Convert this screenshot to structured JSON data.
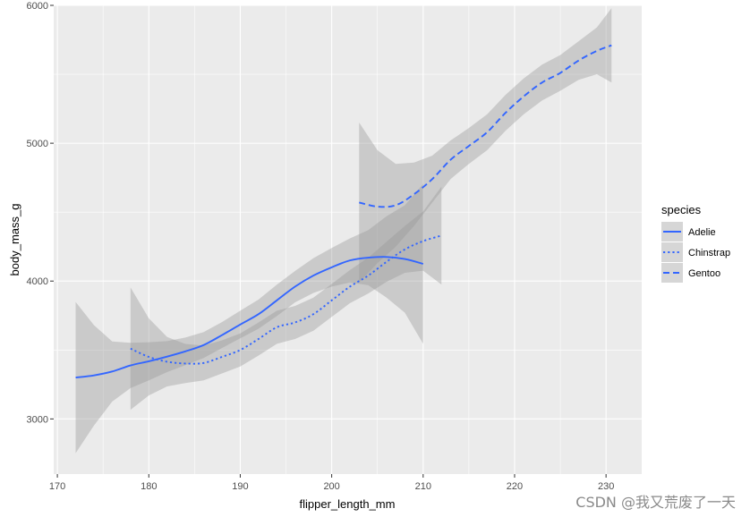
{
  "chart_data": {
    "type": "line",
    "title": "",
    "xlabel": "flipper_length_mm",
    "ylabel": "body_mass_g",
    "xlim": [
      169.6,
      233.9
    ],
    "ylim": [
      2600,
      6000
    ],
    "x_ticks": [
      170,
      180,
      190,
      200,
      210,
      220,
      230
    ],
    "y_ticks": [
      3000,
      4000,
      5000,
      6000
    ],
    "grid": true,
    "legend": {
      "title": "species",
      "position": "right"
    },
    "series": [
      {
        "name": "Adelie",
        "linetype": "solid",
        "color": "#3366FF",
        "points": [
          [
            172,
            3300,
            2752,
            3848
          ],
          [
            174,
            3316,
            2952,
            3680
          ],
          [
            176,
            3344,
            3126,
            3562
          ],
          [
            178,
            3388,
            3224,
            3552
          ],
          [
            180,
            3418,
            3280,
            3556
          ],
          [
            182,
            3452,
            3340,
            3564
          ],
          [
            184,
            3490,
            3390,
            3590
          ],
          [
            186,
            3536,
            3442,
            3630
          ],
          [
            188,
            3608,
            3514,
            3702
          ],
          [
            190,
            3685,
            3585,
            3785
          ],
          [
            192,
            3760,
            3654,
            3866
          ],
          [
            194,
            3860,
            3746,
            3974
          ],
          [
            196,
            3960,
            3846,
            4074
          ],
          [
            198,
            4040,
            3914,
            4166
          ],
          [
            200,
            4100,
            3960,
            4240
          ],
          [
            202,
            4150,
            3990,
            4310
          ],
          [
            204,
            4170,
            3970,
            4370
          ],
          [
            206,
            4175,
            3880,
            4470
          ],
          [
            208,
            4160,
            3770,
            4550
          ],
          [
            210,
            4125,
            3545,
            4705
          ]
        ]
      },
      {
        "name": "Chinstrap",
        "linetype": "dotted",
        "color": "#3366FF",
        "points": [
          [
            178,
            3510,
            3066,
            3954
          ],
          [
            180,
            3450,
            3170,
            3730
          ],
          [
            182,
            3415,
            3236,
            3594
          ],
          [
            184,
            3402,
            3260,
            3544
          ],
          [
            186,
            3406,
            3280,
            3532
          ],
          [
            188,
            3450,
            3330,
            3570
          ],
          [
            190,
            3500,
            3380,
            3620
          ],
          [
            192,
            3580,
            3460,
            3700
          ],
          [
            194,
            3665,
            3545,
            3785
          ],
          [
            196,
            3700,
            3580,
            3820
          ],
          [
            198,
            3760,
            3640,
            3880
          ],
          [
            200,
            3860,
            3740,
            3980
          ],
          [
            202,
            3960,
            3840,
            4080
          ],
          [
            204,
            4040,
            3910,
            4170
          ],
          [
            206,
            4140,
            3995,
            4285
          ],
          [
            208,
            4230,
            4060,
            4400
          ],
          [
            210,
            4290,
            4075,
            4505
          ],
          [
            212,
            4330,
            3975,
            4685
          ]
        ]
      },
      {
        "name": "Gentoo",
        "linetype": "dashed",
        "color": "#3366FF",
        "points": [
          [
            203,
            4570,
            3990,
            5150
          ],
          [
            205,
            4540,
            4130,
            4950
          ],
          [
            207,
            4550,
            4250,
            4850
          ],
          [
            209,
            4630,
            4400,
            4860
          ],
          [
            211,
            4740,
            4570,
            4910
          ],
          [
            213,
            4880,
            4740,
            5020
          ],
          [
            215,
            4980,
            4850,
            5110
          ],
          [
            217,
            5080,
            4950,
            5210
          ],
          [
            219,
            5220,
            5090,
            5350
          ],
          [
            221,
            5340,
            5210,
            5470
          ],
          [
            223,
            5440,
            5310,
            5570
          ],
          [
            225,
            5510,
            5380,
            5640
          ],
          [
            227,
            5600,
            5460,
            5740
          ],
          [
            229,
            5670,
            5500,
            5840
          ],
          [
            230.6,
            5710,
            5440,
            5980
          ]
        ]
      }
    ]
  },
  "watermark": "CSDN @我又荒废了一天"
}
